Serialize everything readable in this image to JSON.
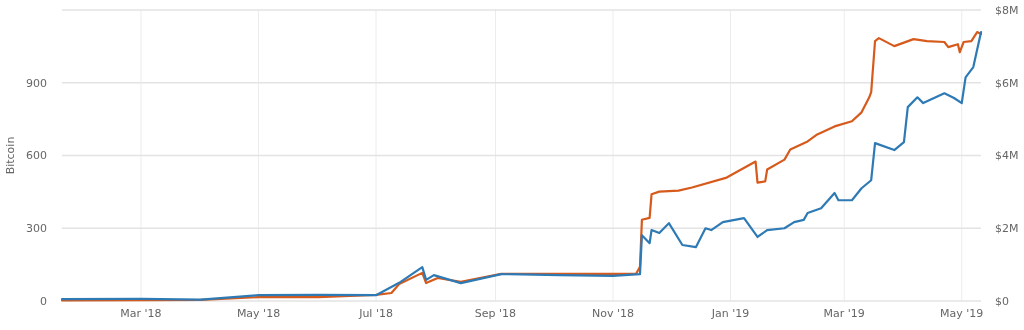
{
  "chart_data": {
    "type": "line",
    "ylabel": "Bitcoin",
    "grid": true,
    "marker": "none",
    "line_style": "solid",
    "xlim": [
      "2018-01-19",
      "2019-05-11"
    ],
    "xticks": [
      {
        "value": "2018-03-01",
        "label": "Mar '18"
      },
      {
        "value": "2018-05-01",
        "label": "May '18"
      },
      {
        "value": "2018-07-01",
        "label": "Jul '18"
      },
      {
        "value": "2018-09-01",
        "label": "Sep '18"
      },
      {
        "value": "2018-11-01",
        "label": "Nov '18"
      },
      {
        "value": "2019-01-01",
        "label": "Jan '19"
      },
      {
        "value": "2019-03-01",
        "label": "Mar '19"
      },
      {
        "value": "2019-05-01",
        "label": "May '19"
      }
    ],
    "ylim": [
      0,
      1200
    ],
    "yticks": [
      0,
      300,
      600,
      900,
      {
        "value": 1200,
        "label": null
      }
    ],
    "y2lim": [
      0,
      8000000
    ],
    "y2ticks": [
      {
        "value": 0,
        "label": "$0"
      },
      {
        "value": 2000000,
        "label": "$2M"
      },
      {
        "value": 4000000,
        "label": "$4M"
      },
      {
        "value": 6000000,
        "label": "$6M"
      },
      {
        "value": 8000000,
        "label": "$8M"
      }
    ],
    "series": [
      {
        "color": "#d65a1c",
        "x": [
          "2018-01-19",
          "2018-03-01",
          "2018-04-01",
          "2018-05-01",
          "2018-06-01",
          "2018-07-01",
          "2018-07-09",
          "2018-07-13",
          "2018-07-25",
          "2018-07-27",
          "2018-08-02",
          "2018-08-14",
          "2018-09-04",
          "2018-10-04",
          "2018-11-13",
          "2018-11-15",
          "2018-11-16",
          "2018-11-20",
          "2018-11-21",
          "2018-11-25",
          "2018-12-05",
          "2018-12-12",
          "2018-12-30",
          "2019-01-14",
          "2019-01-15",
          "2019-01-19",
          "2019-01-20",
          "2019-01-29",
          "2019-02-01",
          "2019-02-10",
          "2019-02-15",
          "2019-02-24",
          "2019-03-05",
          "2019-03-10",
          "2019-03-14",
          "2019-03-15",
          "2019-03-17",
          "2019-03-19",
          "2019-03-27",
          "2019-04-06",
          "2019-04-13",
          "2019-04-22",
          "2019-04-24",
          "2019-04-29",
          "2019-04-30",
          "2019-05-02",
          "2019-05-06",
          "2019-05-09",
          "2019-05-11"
        ],
        "values": [
          2,
          3,
          5,
          16,
          16,
          25,
          33,
          70,
          116,
          74,
          95,
          79,
          112,
          112,
          112,
          141,
          335,
          343,
          440,
          451,
          455,
          468,
          509,
          575,
          488,
          493,
          542,
          583,
          625,
          658,
          687,
          720,
          741,
          778,
          840,
          861,
          1072,
          1084,
          1051,
          1080,
          1072,
          1068,
          1047,
          1059,
          1026,
          1068,
          1072,
          1109,
          1101
        ]
      },
      {
        "color": "#2e7ab5",
        "axis": "y2",
        "x": [
          "2018-01-19",
          "2018-03-01",
          "2018-04-01",
          "2018-05-01",
          "2018-06-01",
          "2018-07-01",
          "2018-07-13",
          "2018-07-25",
          "2018-07-27",
          "2018-07-31",
          "2018-08-14",
          "2018-09-04",
          "2018-10-04",
          "2018-11-01",
          "2018-11-15",
          "2018-11-16",
          "2018-11-20",
          "2018-11-21",
          "2018-11-25",
          "2018-11-30",
          "2018-12-07",
          "2018-12-14",
          "2018-12-19",
          "2018-12-22",
          "2018-12-28",
          "2019-01-08",
          "2019-01-15",
          "2019-01-20",
          "2019-01-29",
          "2019-02-03",
          "2019-02-08",
          "2019-02-10",
          "2019-02-17",
          "2019-02-24",
          "2019-02-26",
          "2019-03-05",
          "2019-03-10",
          "2019-03-15",
          "2019-03-17",
          "2019-03-27",
          "2019-04-01",
          "2019-04-03",
          "2019-04-08",
          "2019-04-11",
          "2019-04-22",
          "2019-04-27",
          "2019-05-01",
          "2019-05-03",
          "2019-05-07",
          "2019-05-11"
        ],
        "values": [
          50000,
          60000,
          40000,
          160000,
          170000,
          160000,
          500000,
          930000,
          580000,
          710000,
          490000,
          740000,
          710000,
          690000,
          740000,
          1810000,
          1590000,
          1950000,
          1870000,
          2140000,
          1540000,
          1480000,
          2000000,
          1950000,
          2170000,
          2280000,
          1760000,
          1950000,
          2000000,
          2170000,
          2230000,
          2420000,
          2550000,
          2970000,
          2770000,
          2770000,
          3100000,
          3320000,
          4340000,
          4150000,
          4370000,
          5330000,
          5600000,
          5440000,
          5710000,
          5580000,
          5440000,
          6150000,
          6430000,
          7390000
        ]
      }
    ]
  }
}
